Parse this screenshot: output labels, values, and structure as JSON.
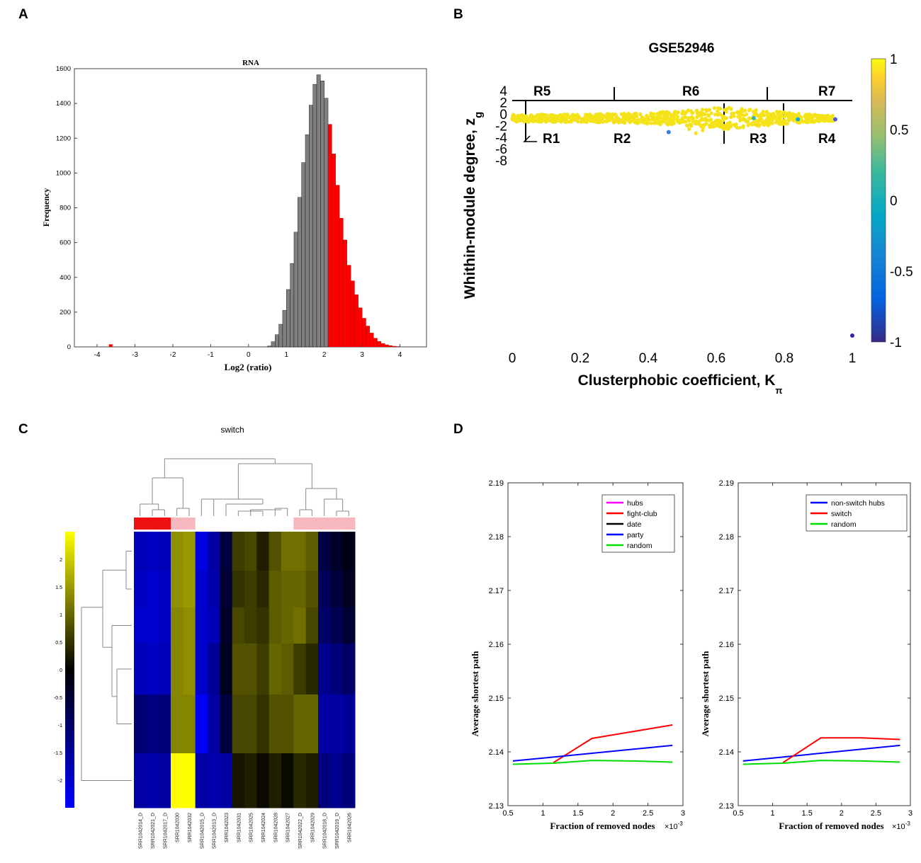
{
  "panels": {
    "a": "A",
    "b": "B",
    "c": "C",
    "d": "D"
  },
  "chart_data": [
    {
      "id": "A",
      "type": "bar",
      "title": "RNA",
      "xlabel": "Log2 (ratio)",
      "ylabel": "Frequency",
      "xlim": [
        -4.6,
        4.7
      ],
      "ylim": [
        0,
        1600
      ],
      "xticks": [
        -4,
        -3,
        -2,
        -1,
        0,
        1,
        2,
        3,
        4
      ],
      "yticks": [
        0,
        200,
        400,
        600,
        800,
        1000,
        1200,
        1400,
        1600
      ],
      "bin_width": 0.1,
      "colors": {
        "base": "#808080",
        "highlight": "#ff0000"
      },
      "highlight_threshold": 2.1,
      "bins_start": 0.5,
      "values": [
        5,
        30,
        70,
        130,
        210,
        330,
        480,
        660,
        860,
        1060,
        1220,
        1390,
        1510,
        1565,
        1530,
        1430,
        1280,
        1110,
        930,
        740,
        615,
        470,
        380,
        300,
        225,
        165,
        120,
        80,
        50,
        32,
        20,
        12,
        7,
        4,
        2
      ],
      "outliers": [
        {
          "x": -3.65,
          "value": 15
        }
      ]
    },
    {
      "id": "B",
      "type": "scatter",
      "title": "GSE52946",
      "xlabel": "Clusterphobic coefficient, K",
      "xlabel_sub": "π",
      "ylabel": "Whithin-module degree, z",
      "ylabel_sub": "g",
      "xlim": [
        0,
        1
      ],
      "xticks": [
        "0",
        "0.2",
        "0.4",
        "0.6",
        "0.8",
        "1"
      ],
      "yticks": [
        "4",
        "2",
        "0",
        "-2",
        "-4",
        "-6",
        "-8"
      ],
      "colorbar_ticks": [
        "1",
        "0.5",
        "0",
        "-0.5",
        "-1"
      ],
      "regions_top": [
        "R5",
        "R6",
        "R7"
      ],
      "regions_bottom": [
        "R1",
        "R2",
        "R3",
        "R4"
      ],
      "outlier_points": [
        {
          "x": 0.46,
          "y": -3.0,
          "color": "#3a7fe0"
        },
        {
          "x": 0.71,
          "y": -0.6,
          "color": "#2fb8a8"
        },
        {
          "x": 0.84,
          "y": -0.8,
          "color": "#1fa9c8"
        },
        {
          "x": 0.95,
          "y": -0.8,
          "color": "#4a5ae0"
        },
        {
          "x": 1.0,
          "y": -40,
          "color": "#3a1fa8"
        }
      ]
    },
    {
      "id": "C",
      "type": "heatmap",
      "title": "switch",
      "colorbar_ticks": [
        "2",
        "1.5",
        "1",
        "0.5",
        "0",
        "-0.5",
        "-1",
        "-1.5",
        "-2"
      ],
      "columns": [
        "SRR1042014_D",
        "SRR1042021_D",
        "SRR1042017_D",
        "SRR1042030",
        "SRR1042032",
        "SRR1042015_D",
        "SRR1042013_D",
        "SRR1042023",
        "SRR1042031",
        "SRR1042025",
        "SRR1042024",
        "SRR1042028",
        "SRR1042027",
        "SRR1042022_D",
        "SRR1042029",
        "SRR1042018_D",
        "SRR1042019_D",
        "SRR1042026"
      ],
      "group_colors": [
        "#ee1111",
        "#ee1111",
        "#ee1111",
        "#f7b8c0",
        "#f7b8c0",
        "#ffffff",
        "#ffffff",
        "#ffffff",
        "#ffffff",
        "#ffffff",
        "#ffffff",
        "#ffffff",
        "#ffffff",
        "#f7b8c0",
        "#f7b8c0",
        "#f7b8c0",
        "#f7b8c0",
        "#f7b8c0"
      ],
      "values": [
        [
          -1.8,
          -1.9,
          -1.8,
          1.4,
          1.5,
          -2.2,
          -1.6,
          -0.6,
          0.6,
          0.7,
          0.3,
          0.8,
          1.1,
          1.1,
          0.9,
          -0.7,
          -0.4,
          -0.2
        ],
        [
          -1.9,
          -2.0,
          -1.9,
          1.4,
          1.5,
          -2.0,
          -1.7,
          -0.5,
          0.5,
          0.6,
          0.4,
          0.9,
          1.0,
          1.0,
          0.8,
          -0.9,
          -0.6,
          -0.3
        ],
        [
          -2.0,
          -2.0,
          -1.9,
          1.3,
          1.4,
          -2.0,
          -1.8,
          -0.4,
          0.7,
          0.6,
          0.5,
          0.9,
          1.0,
          1.1,
          0.7,
          -1.0,
          -0.8,
          -0.5
        ],
        [
          -1.8,
          -1.9,
          -1.8,
          1.3,
          1.4,
          -2.0,
          -1.5,
          -0.3,
          0.8,
          0.8,
          0.6,
          1.0,
          0.9,
          0.6,
          0.4,
          -1.4,
          -1.2,
          -1.0
        ],
        [
          -1.1,
          -1.3,
          -1.2,
          1.3,
          1.3,
          -2.4,
          -1.6,
          -0.6,
          0.7,
          0.7,
          0.5,
          0.8,
          0.8,
          1.0,
          1.0,
          -1.6,
          -1.6,
          -1.5
        ],
        [
          -1.6,
          -1.7,
          -1.6,
          2.5,
          2.6,
          -1.6,
          -1.7,
          -1.6,
          0.2,
          0.3,
          0.1,
          0.3,
          0.1,
          0.4,
          0.3,
          -1.2,
          -1.4,
          -1.2
        ]
      ]
    },
    {
      "id": "D1",
      "type": "line",
      "xlabel": "Fraction of removed nodes",
      "xscale_label": "×10",
      "xscale_exp": "-3",
      "ylabel": "Average shortest path",
      "xlim": [
        0.5,
        3.0
      ],
      "ylim": [
        2.13,
        2.19
      ],
      "xticks": [
        "0.5",
        "1",
        "1.5",
        "2",
        "2.5",
        "3"
      ],
      "yticks": [
        "2.13",
        "2.14",
        "2.15",
        "2.16",
        "2.17",
        "2.18",
        "2.19"
      ],
      "legend": "top-right",
      "series": [
        {
          "name": "hubs",
          "color": "#ff00ff",
          "x": [],
          "y": []
        },
        {
          "name": "fight-club",
          "color": "#ff0000",
          "x": [
            1.15,
            1.7,
            2.85
          ],
          "y": [
            2.138,
            2.1425,
            2.145
          ]
        },
        {
          "name": "date",
          "color": "#000000",
          "x": [],
          "y": []
        },
        {
          "name": "party",
          "color": "#0000ff",
          "x": [
            0.57,
            2.85
          ],
          "y": [
            2.1383,
            2.1412
          ]
        },
        {
          "name": "random",
          "color": "#00dd00",
          "x": [
            0.57,
            1.15,
            1.7,
            2.3,
            2.85
          ],
          "y": [
            2.1377,
            2.1379,
            2.1384,
            2.1383,
            2.1381
          ]
        }
      ]
    },
    {
      "id": "D2",
      "type": "line",
      "xlabel": "Fraction of removed nodes",
      "xscale_label": "×10",
      "xscale_exp": "-3",
      "ylabel": "Average shortest path",
      "xlim": [
        0.5,
        3.0
      ],
      "ylim": [
        2.13,
        2.19
      ],
      "xticks": [
        "0.5",
        "1",
        "1.5",
        "2",
        "2.5",
        "3"
      ],
      "yticks": [
        "2.13",
        "2.14",
        "2.15",
        "2.16",
        "2.17",
        "2.18",
        "2.19"
      ],
      "legend": "top-right",
      "series": [
        {
          "name": "non-switch hubs",
          "color": "#0000ff",
          "x": [
            0.57,
            2.85
          ],
          "y": [
            2.1383,
            2.1412
          ]
        },
        {
          "name": "switch",
          "color": "#ff0000",
          "x": [
            1.15,
            1.7,
            2.3,
            2.85
          ],
          "y": [
            2.138,
            2.1426,
            2.1426,
            2.1423
          ]
        },
        {
          "name": "random",
          "color": "#00dd00",
          "x": [
            0.57,
            1.15,
            1.7,
            2.3,
            2.85
          ],
          "y": [
            2.1377,
            2.1379,
            2.1384,
            2.1383,
            2.1381
          ]
        }
      ]
    }
  ]
}
